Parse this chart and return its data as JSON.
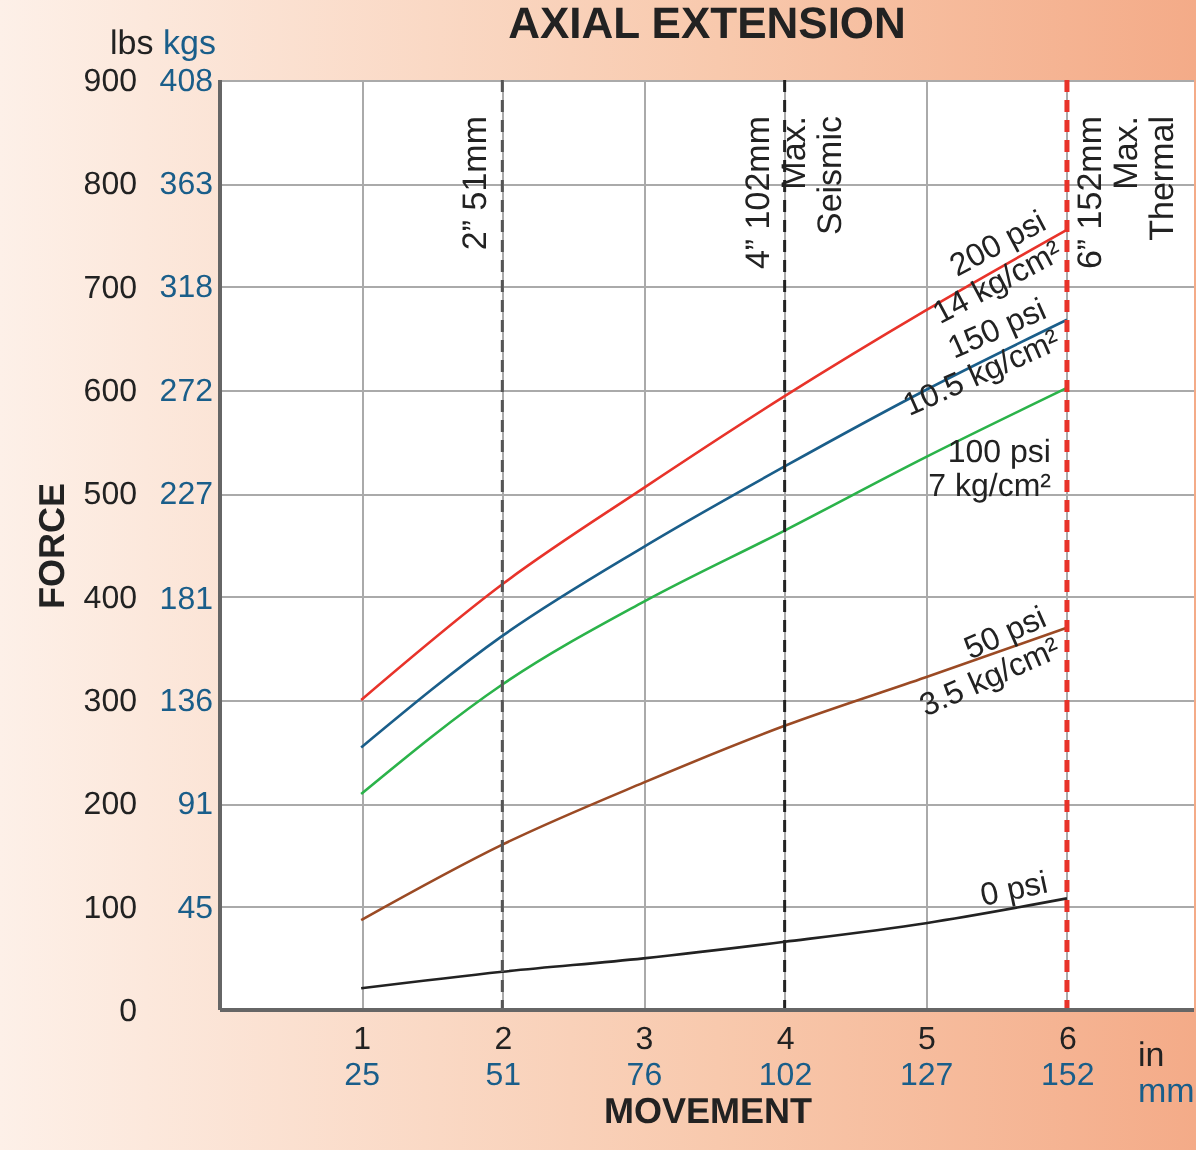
{
  "chart_data": {
    "type": "line",
    "title": "AXIAL EXTENSION",
    "xlabel": "MOVEMENT",
    "ylabel": "FORCE",
    "x": [
      1,
      2,
      3,
      4,
      5,
      6
    ],
    "series": [
      {
        "name": "200 psi\n14 kg/cm²",
        "color": "#e8332a",
        "values": [
          300,
          412,
          505,
          594,
          677,
          755
        ]
      },
      {
        "name": "150 psi\n10.5 kg/cm²",
        "color": "#1a5e8a",
        "values": [
          254,
          362,
          448,
          526,
          600,
          668
        ]
      },
      {
        "name": "100 psi\n7 kg/cm²",
        "color": "#2bb34a",
        "values": [
          209,
          315,
          395,
          464,
          535,
          602
        ]
      },
      {
        "name": "50 psi\n3.5 kg/cm²",
        "color": "#9b4a24",
        "values": [
          87,
          160,
          220,
          275,
          322,
          370
        ]
      },
      {
        "name": "0 psi",
        "color": "#222222",
        "values": [
          21,
          37,
          50,
          66,
          84,
          108
        ]
      }
    ],
    "xlim": [
      0,
      6.9
    ],
    "xticks": [
      1,
      2,
      3,
      4,
      5,
      6
    ],
    "x2lim": [
      0,
      175.3
    ],
    "x2ticks": [
      {
        "value": 25.4,
        "label": "25"
      },
      {
        "value": 50.8,
        "label": "51"
      },
      {
        "value": 76.2,
        "label": "76"
      },
      {
        "value": 101.6,
        "label": "102"
      },
      {
        "value": 127,
        "label": "127"
      },
      {
        "value": 152.4,
        "label": "152"
      }
    ],
    "ylim": [
      0,
      900
    ],
    "yticks": [
      0,
      100,
      200,
      300,
      400,
      500,
      600,
      700,
      800,
      900
    ],
    "y2lim": [
      0,
      408.2
    ],
    "y2ticks": [
      45,
      91,
      136,
      181,
      227,
      272,
      318,
      363,
      408
    ],
    "ref_lines": [
      {
        "axis": "x",
        "value": 2,
        "label": "2” 51mm",
        "color": "#555555",
        "line_style": "dashed"
      },
      {
        "axis": "x",
        "value": 4,
        "label": "4” 102mm\nMax.\nSeismic",
        "color": "#222222",
        "line_style": "dashed"
      },
      {
        "axis": "x",
        "value": 6,
        "label": "6” 152mm\nMax.\nThermal",
        "color": "#e8332a",
        "line_style": "dashed"
      }
    ],
    "annotations": [
      "lbs",
      "kgs",
      "in",
      "mm"
    ],
    "grid": true
  }
}
